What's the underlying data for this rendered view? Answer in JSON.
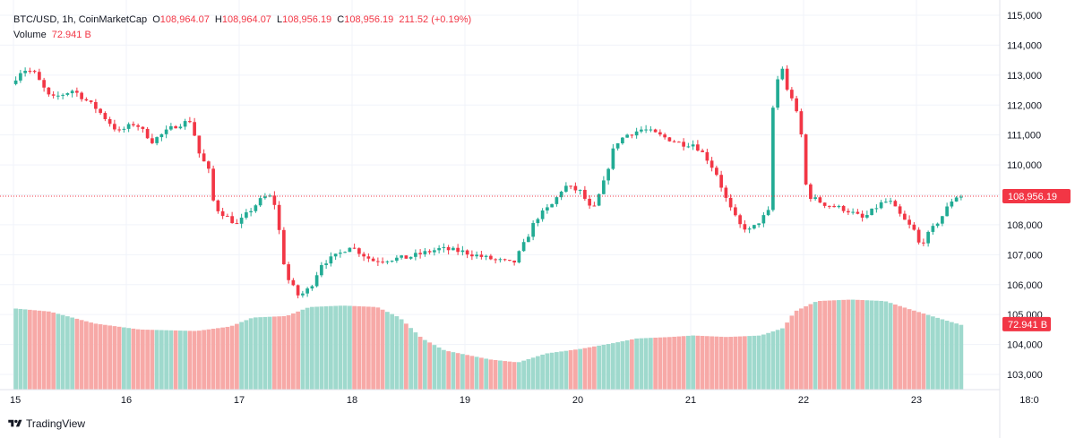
{
  "header": {
    "symbol": "BTC/USD, 1h, CoinMarketCap",
    "o_label": "O",
    "o_value": "108,964.07",
    "h_label": "H",
    "h_value": "108,964.07",
    "l_label": "L",
    "l_value": "108,956.19",
    "c_label": "C",
    "c_value": "108,956.19",
    "change": "211.52 (+0.19%)",
    "volume_label": "Volume",
    "volume_value": "72.941 B"
  },
  "footer": {
    "brand": "TradingView"
  },
  "colors": {
    "up": "#22ab94",
    "down": "#f23645",
    "vol_up": "#9fd9cd",
    "vol_down": "#f7a9a7",
    "grid": "#f0f3fa"
  },
  "chart_data": {
    "type": "candlestick",
    "title": "",
    "y_ticks": [
      "115,000",
      "114,000",
      "113,000",
      "112,000",
      "111,000",
      "110,000",
      "109,000",
      "108,000",
      "107,000",
      "106,000",
      "105,000",
      "104,000",
      "103,000"
    ],
    "ylim": [
      102500,
      115100
    ],
    "x_ticks": [
      "15",
      "16",
      "17",
      "18",
      "19",
      "20",
      "21",
      "22",
      "23",
      "18:0"
    ],
    "last_price": 108956.19,
    "last_price_label": "108,956.19",
    "last_volume_label": "72.941 B",
    "price_anchors": [
      [
        15.0,
        112700
      ],
      [
        15.1,
        113200
      ],
      [
        15.2,
        113100
      ],
      [
        15.35,
        112200
      ],
      [
        15.55,
        112500
      ],
      [
        15.75,
        111900
      ],
      [
        15.95,
        111100
      ],
      [
        16.1,
        111400
      ],
      [
        16.25,
        110800
      ],
      [
        16.45,
        111300
      ],
      [
        16.6,
        111500
      ],
      [
        16.65,
        110500
      ],
      [
        16.75,
        109800
      ],
      [
        16.8,
        108600
      ],
      [
        16.9,
        108300
      ],
      [
        17.0,
        108000
      ],
      [
        17.2,
        108800
      ],
      [
        17.28,
        109000
      ],
      [
        17.35,
        108600
      ],
      [
        17.4,
        107000
      ],
      [
        17.45,
        106200
      ],
      [
        17.55,
        105600
      ],
      [
        17.65,
        105900
      ],
      [
        17.75,
        106700
      ],
      [
        17.9,
        107000
      ],
      [
        18.0,
        107300
      ],
      [
        18.2,
        106800
      ],
      [
        18.5,
        106900
      ],
      [
        18.8,
        107200
      ],
      [
        19.0,
        107100
      ],
      [
        19.2,
        106900
      ],
      [
        19.45,
        106700
      ],
      [
        19.55,
        107400
      ],
      [
        19.65,
        108200
      ],
      [
        19.8,
        108700
      ],
      [
        19.9,
        109300
      ],
      [
        20.05,
        109100
      ],
      [
        20.15,
        108400
      ],
      [
        20.25,
        109400
      ],
      [
        20.35,
        110700
      ],
      [
        20.45,
        111000
      ],
      [
        20.6,
        111200
      ],
      [
        20.8,
        110900
      ],
      [
        20.95,
        110700
      ],
      [
        21.05,
        110700
      ],
      [
        21.15,
        110300
      ],
      [
        21.25,
        109700
      ],
      [
        21.35,
        108700
      ],
      [
        21.45,
        108000
      ],
      [
        21.55,
        107800
      ],
      [
        21.7,
        108400
      ],
      [
        21.73,
        108500
      ],
      [
        21.75,
        111900
      ],
      [
        21.82,
        113500
      ],
      [
        21.87,
        112500
      ],
      [
        21.93,
        112200
      ],
      [
        22.0,
        111000
      ],
      [
        22.05,
        109000
      ],
      [
        22.2,
        108700
      ],
      [
        22.4,
        108500
      ],
      [
        22.55,
        108200
      ],
      [
        22.7,
        108700
      ],
      [
        22.78,
        108800
      ],
      [
        22.9,
        108200
      ],
      [
        23.0,
        107800
      ],
      [
        23.05,
        107300
      ],
      [
        23.15,
        107800
      ],
      [
        23.25,
        108300
      ],
      [
        23.33,
        108800
      ],
      [
        23.38,
        108960
      ]
    ],
    "volume_anchors": [
      [
        15.0,
        105.2
      ],
      [
        15.3,
        105.1
      ],
      [
        15.7,
        104.7
      ],
      [
        16.1,
        104.5
      ],
      [
        16.6,
        104.45
      ],
      [
        16.9,
        104.6
      ],
      [
        17.1,
        104.9
      ],
      [
        17.4,
        104.95
      ],
      [
        17.6,
        105.25
      ],
      [
        17.9,
        105.3
      ],
      [
        18.2,
        105.25
      ],
      [
        18.4,
        104.9
      ],
      [
        18.6,
        104.2
      ],
      [
        18.8,
        103.8
      ],
      [
        19.2,
        103.5
      ],
      [
        19.45,
        103.4
      ],
      [
        19.7,
        103.7
      ],
      [
        20.0,
        103.85
      ],
      [
        20.3,
        104.05
      ],
      [
        20.5,
        104.2
      ],
      [
        20.8,
        104.25
      ],
      [
        21.0,
        104.3
      ],
      [
        21.3,
        104.25
      ],
      [
        21.6,
        104.3
      ],
      [
        21.8,
        104.55
      ],
      [
        21.9,
        105.1
      ],
      [
        22.1,
        105.45
      ],
      [
        22.4,
        105.5
      ],
      [
        22.7,
        105.45
      ],
      [
        22.9,
        105.2
      ],
      [
        23.2,
        104.85
      ],
      [
        23.38,
        104.65
      ]
    ]
  }
}
